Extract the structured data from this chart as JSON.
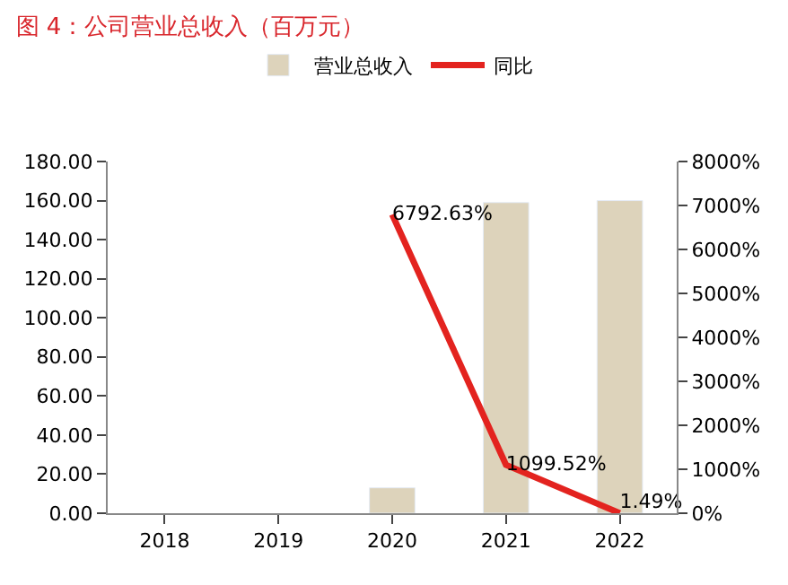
{
  "chart_data": {
    "type": "bar",
    "title": "图 4：公司营业总收入（百万元）",
    "categories": [
      "2018",
      "2019",
      "2020",
      "2021",
      "2022"
    ],
    "series": [
      {
        "name": "营业总收入",
        "color": "#ddd3bb",
        "values": [
          null,
          null,
          13,
          159,
          160
        ]
      },
      {
        "name": "同比",
        "type": "line",
        "axis": "y2",
        "color": "#e3231f",
        "values": [
          null,
          null,
          6792.63,
          1099.52,
          1.49
        ],
        "value_labels": [
          null,
          null,
          "6792.63%",
          "1099.52%",
          "1.49%"
        ],
        "marker": "none"
      }
    ],
    "ylim": [
      0,
      180
    ],
    "yticks": [
      {
        "value": 0,
        "label": "0.00"
      },
      {
        "value": 20,
        "label": "20.00"
      },
      {
        "value": 40,
        "label": "40.00"
      },
      {
        "value": 60,
        "label": "60.00"
      },
      {
        "value": 80,
        "label": "80.00"
      },
      {
        "value": 100,
        "label": "100.00"
      },
      {
        "value": 120,
        "label": "120.00"
      },
      {
        "value": 140,
        "label": "140.00"
      },
      {
        "value": 160,
        "label": "160.00"
      },
      {
        "value": 180,
        "label": "180.00"
      }
    ],
    "y2lim": [
      0,
      8000
    ],
    "y2ticks": [
      {
        "value": 0,
        "label": "0%"
      },
      {
        "value": 1000,
        "label": "1000%"
      },
      {
        "value": 2000,
        "label": "2000%"
      },
      {
        "value": 3000,
        "label": "3000%"
      },
      {
        "value": 4000,
        "label": "4000%"
      },
      {
        "value": 5000,
        "label": "5000%"
      },
      {
        "value": 6000,
        "label": "6000%"
      },
      {
        "value": 7000,
        "label": "7000%"
      },
      {
        "value": 8000,
        "label": "8000%"
      }
    ],
    "grid": false,
    "legend": "top"
  }
}
